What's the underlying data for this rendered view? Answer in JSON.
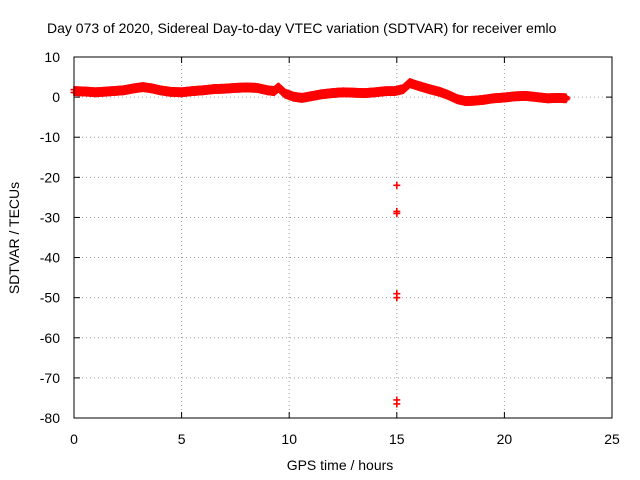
{
  "chart_data": {
    "type": "scatter",
    "title": "Day 073 of 2020, Sidereal Day-to-day VTEC variation (SDTVAR) for receiver emlo",
    "xlabel": "GPS time / hours",
    "ylabel": "SDTVAR / TECUs",
    "xlim": [
      0,
      25
    ],
    "ylim": [
      -80,
      10
    ],
    "xticks": [
      0,
      5,
      10,
      15,
      20,
      25
    ],
    "xtick_labels": [
      "0",
      "5",
      "10",
      "15",
      "20",
      "25"
    ],
    "yticks": [
      10,
      0,
      -10,
      -20,
      -30,
      -40,
      -50,
      -60,
      -70,
      -80
    ],
    "ytick_labels": [
      "10",
      "0",
      "-10",
      "-20",
      "-30",
      "-40",
      "-50",
      "-60",
      "-70",
      "-80"
    ],
    "grid": true,
    "marker": "plus",
    "series": [
      {
        "name": "SDTVAR",
        "color": "#ff0000",
        "trend": [
          [
            0.0,
            1.5
          ],
          [
            0.5,
            1.4
          ],
          [
            1.0,
            1.2
          ],
          [
            1.3,
            1.3
          ],
          [
            1.8,
            1.5
          ],
          [
            2.3,
            1.7
          ],
          [
            2.8,
            2.2
          ],
          [
            3.2,
            2.5
          ],
          [
            3.6,
            2.2
          ],
          [
            4.0,
            1.7
          ],
          [
            4.5,
            1.3
          ],
          [
            5.0,
            1.2
          ],
          [
            5.5,
            1.5
          ],
          [
            6.0,
            1.7
          ],
          [
            6.5,
            2.0
          ],
          [
            7.0,
            2.1
          ],
          [
            7.5,
            2.3
          ],
          [
            8.0,
            2.4
          ],
          [
            8.5,
            2.3
          ],
          [
            9.0,
            1.7
          ],
          [
            9.3,
            1.5
          ],
          [
            9.5,
            2.4
          ],
          [
            9.8,
            0.9
          ],
          [
            10.2,
            0.1
          ],
          [
            10.6,
            -0.2
          ],
          [
            11.0,
            0.2
          ],
          [
            11.5,
            0.7
          ],
          [
            12.0,
            1.0
          ],
          [
            12.5,
            1.2
          ],
          [
            13.0,
            1.1
          ],
          [
            13.5,
            1.0
          ],
          [
            14.0,
            1.2
          ],
          [
            14.5,
            1.5
          ],
          [
            14.9,
            1.5
          ],
          [
            15.3,
            2.0
          ],
          [
            15.6,
            3.5
          ],
          [
            16.0,
            2.8
          ],
          [
            16.5,
            2.0
          ],
          [
            17.0,
            1.3
          ],
          [
            17.4,
            0.5
          ],
          [
            17.8,
            -0.5
          ],
          [
            18.2,
            -1.0
          ],
          [
            18.6,
            -0.9
          ],
          [
            19.0,
            -0.7
          ],
          [
            19.5,
            -0.3
          ],
          [
            20.0,
            -0.1
          ],
          [
            20.5,
            0.2
          ],
          [
            21.0,
            0.3
          ],
          [
            21.5,
            0.0
          ],
          [
            22.0,
            -0.3
          ],
          [
            22.5,
            -0.2
          ],
          [
            22.9,
            -0.3
          ]
        ],
        "outliers": [
          [
            15.0,
            -22.0
          ],
          [
            15.0,
            -28.5
          ],
          [
            15.0,
            -29.0
          ],
          [
            15.0,
            -49.0
          ],
          [
            15.0,
            -50.0
          ],
          [
            15.0,
            -75.5
          ],
          [
            15.0,
            -76.5
          ]
        ]
      }
    ]
  }
}
